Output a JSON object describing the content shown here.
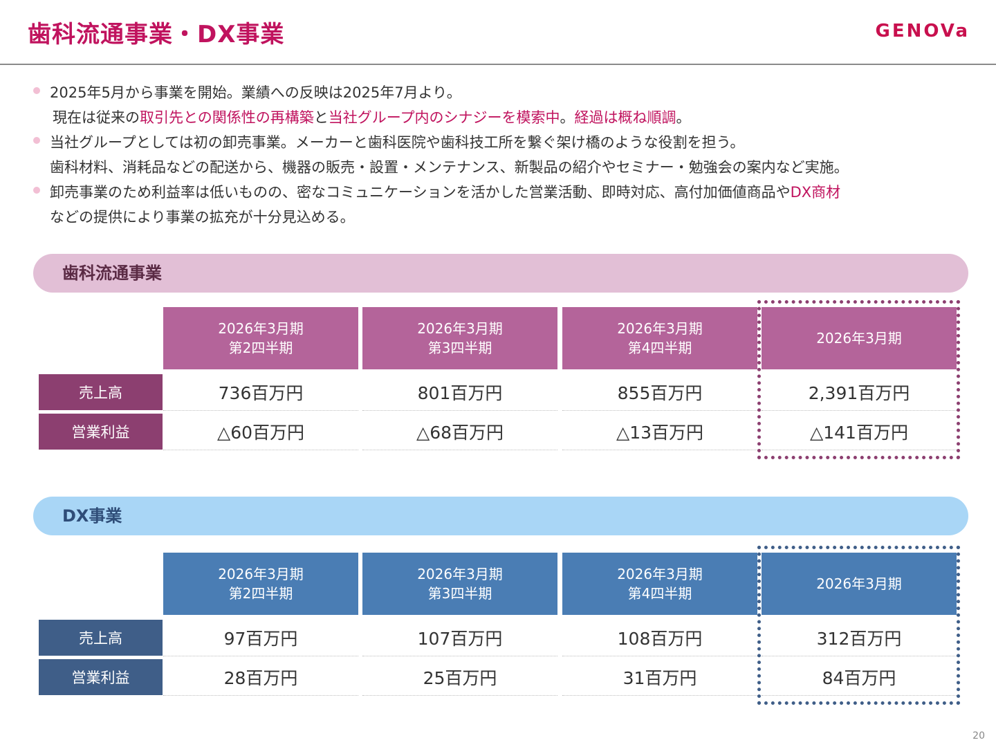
{
  "header": {
    "title": "歯科流通事業・DX事業",
    "logo": "GENOVa"
  },
  "bullets": [
    {
      "lines": [
        [
          {
            "t": "2025年5月から事業を開始。業績への反映は2025年7月より。",
            "hl": false
          }
        ],
        [
          {
            "t": "現在は従来の",
            "hl": false
          },
          {
            "t": "取引先との関係性の再構築",
            "hl": true
          },
          {
            "t": "と",
            "hl": false
          },
          {
            "t": "当社グループ内のシナジーを模索中",
            "hl": true
          },
          {
            "t": "。",
            "hl": false
          },
          {
            "t": "経過は概ね順調",
            "hl": true
          },
          {
            "t": "。",
            "hl": false
          }
        ]
      ]
    },
    {
      "lines": [
        [
          {
            "t": "当社グループとしては初の卸売事業。メーカーと歯科医院や歯科技工所を繋ぐ架け橋のような役割を担う。",
            "hl": false
          }
        ],
        [
          {
            "t": "歯科材料、消耗品などの配送から、機器の販売・設置・メンテナンス、新製品の紹介やセミナー・勉強会の案内など実施。",
            "hl": false
          }
        ]
      ]
    },
    {
      "lines": [
        [
          {
            "t": "卸売事業のため利益率は低いものの、密なコミュニケーションを活かした営業活動、即時対応、高付加価値商品や",
            "hl": false
          },
          {
            "t": "DX商材",
            "hl": true
          }
        ],
        [
          {
            "t": "などの提供により事業の拡充が十分見込める。",
            "hl": false
          }
        ]
      ]
    }
  ],
  "sections": [
    {
      "title": "歯科流通事業",
      "theme": "pink",
      "headers": [
        [
          "2026年3月期",
          "第2四半期"
        ],
        [
          "2026年3月期",
          "第3四半期"
        ],
        [
          "2026年3月期",
          "第4四半期"
        ],
        [
          "2026年3月期"
        ]
      ],
      "rows": [
        {
          "label": "売上高",
          "values": [
            "736百万円",
            "801百万円",
            "855百万円",
            "2,391百万円"
          ]
        },
        {
          "label": "営業利益",
          "values": [
            "△60百万円",
            "△68百万円",
            "△13百万円",
            "△141百万円"
          ]
        }
      ]
    },
    {
      "title": "DX事業",
      "theme": "blue",
      "headers": [
        [
          "2026年3月期",
          "第2四半期"
        ],
        [
          "2026年3月期",
          "第3四半期"
        ],
        [
          "2026年3月期",
          "第4四半期"
        ],
        [
          "2026年3月期"
        ]
      ],
      "rows": [
        {
          "label": "売上高",
          "values": [
            "97百万円",
            "107百万円",
            "108百万円",
            "312百万円"
          ]
        },
        {
          "label": "営業利益",
          "values": [
            "28百万円",
            "25百万円",
            "31百万円",
            "84百万円"
          ]
        }
      ]
    }
  ],
  "colors": {
    "accent": "#c0135e",
    "pink_header": "#b4649a",
    "pink_label": "#8c3f70",
    "blue_header": "#4a7db4",
    "blue_label": "#3f5e88"
  },
  "page_number": "20"
}
